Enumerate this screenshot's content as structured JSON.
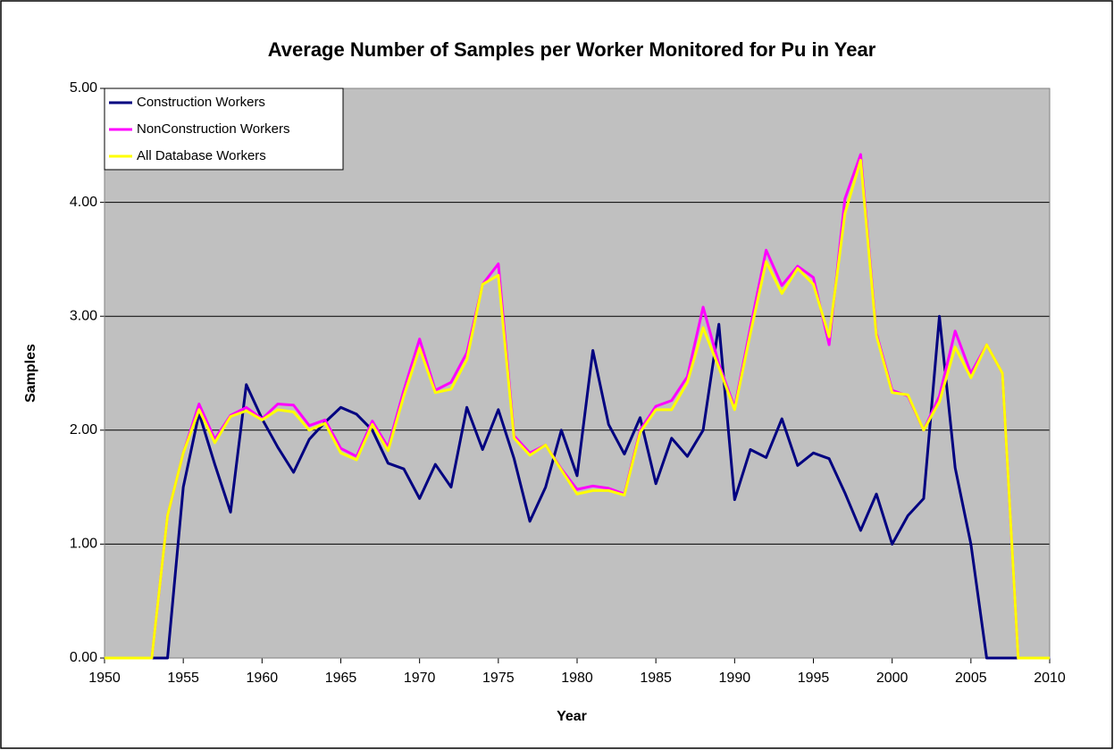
{
  "chart_data": {
    "type": "line",
    "title": "Average Number of Samples per Worker Monitored for Pu in Year",
    "x_label": "Year",
    "y_label": "Samples",
    "x": [
      1950,
      1951,
      1952,
      1953,
      1954,
      1955,
      1956,
      1957,
      1958,
      1959,
      1960,
      1961,
      1962,
      1963,
      1964,
      1965,
      1966,
      1967,
      1968,
      1969,
      1970,
      1971,
      1972,
      1973,
      1974,
      1975,
      1976,
      1977,
      1978,
      1979,
      1980,
      1981,
      1982,
      1983,
      1984,
      1985,
      1986,
      1987,
      1988,
      1989,
      1990,
      1991,
      1992,
      1993,
      1994,
      1995,
      1996,
      1997,
      1998,
      1999,
      2000,
      2001,
      2002,
      2003,
      2004,
      2005,
      2006,
      2007,
      2008,
      2009,
      2010
    ],
    "series": [
      {
        "name": "Construction Workers",
        "color": "#000080",
        "values": [
          0,
          0,
          0,
          0,
          0,
          1.5,
          2.15,
          1.7,
          1.28,
          2.4,
          2.1,
          1.85,
          1.63,
          1.92,
          2.07,
          2.2,
          2.14,
          2.0,
          1.71,
          1.66,
          1.4,
          1.7,
          1.5,
          2.2,
          1.83,
          2.18,
          1.75,
          1.2,
          1.5,
          2.0,
          1.6,
          2.7,
          2.05,
          1.79,
          2.11,
          1.53,
          1.93,
          1.77,
          2.0,
          2.93,
          1.39,
          1.83,
          1.76,
          2.1,
          1.69,
          1.8,
          1.75,
          1.45,
          1.12,
          1.44,
          1.0,
          1.25,
          1.4,
          3.0,
          1.67,
          1.0,
          0,
          0,
          0,
          0,
          0
        ]
      },
      {
        "name": "NonConstruction Workers",
        "color": "#ff00ff",
        "values": [
          0,
          0,
          0,
          0,
          1.25,
          1.8,
          2.23,
          1.92,
          2.13,
          2.2,
          2.1,
          2.23,
          2.22,
          2.04,
          2.09,
          1.84,
          1.77,
          2.08,
          1.85,
          2.35,
          2.8,
          2.35,
          2.42,
          2.68,
          3.28,
          3.46,
          1.95,
          1.8,
          1.87,
          1.66,
          1.48,
          1.51,
          1.49,
          1.44,
          2.0,
          2.21,
          2.26,
          2.47,
          3.08,
          2.58,
          2.2,
          2.9,
          3.58,
          3.27,
          3.44,
          3.34,
          2.75,
          4.03,
          4.42,
          2.85,
          2.35,
          2.3,
          2.0,
          2.3,
          2.87,
          2.5,
          2.75,
          2.5,
          0,
          0,
          0
        ]
      },
      {
        "name": "All Database Workers",
        "color": "#ffff00",
        "values": [
          0,
          0,
          0,
          0,
          1.25,
          1.8,
          2.18,
          1.89,
          2.12,
          2.17,
          2.09,
          2.18,
          2.16,
          2.0,
          2.06,
          1.8,
          1.74,
          2.05,
          1.82,
          2.3,
          2.72,
          2.33,
          2.36,
          2.62,
          3.28,
          3.36,
          1.93,
          1.78,
          1.87,
          1.65,
          1.44,
          1.47,
          1.47,
          1.43,
          1.98,
          2.18,
          2.18,
          2.42,
          2.9,
          2.55,
          2.18,
          2.85,
          3.48,
          3.2,
          3.42,
          3.28,
          2.82,
          3.9,
          4.37,
          2.83,
          2.33,
          2.31,
          2.0,
          2.25,
          2.73,
          2.46,
          2.75,
          2.5,
          0,
          0,
          0
        ]
      }
    ],
    "xlim": [
      1950,
      2010
    ],
    "xticks": [
      1950,
      1955,
      1960,
      1965,
      1970,
      1975,
      1980,
      1985,
      1990,
      1995,
      2000,
      2005,
      2010
    ],
    "ylim": [
      0,
      5
    ],
    "yticks": [
      {
        "value": 0,
        "label": "0.00"
      },
      {
        "value": 1,
        "label": "1.00"
      },
      {
        "value": 2,
        "label": "2.00"
      },
      {
        "value": 3,
        "label": "3.00"
      },
      {
        "value": 4,
        "label": "4.00"
      },
      {
        "value": 5,
        "label": "5.00"
      }
    ],
    "grid": true,
    "legend": "upper left",
    "plot_background": "#c0c0c0"
  }
}
